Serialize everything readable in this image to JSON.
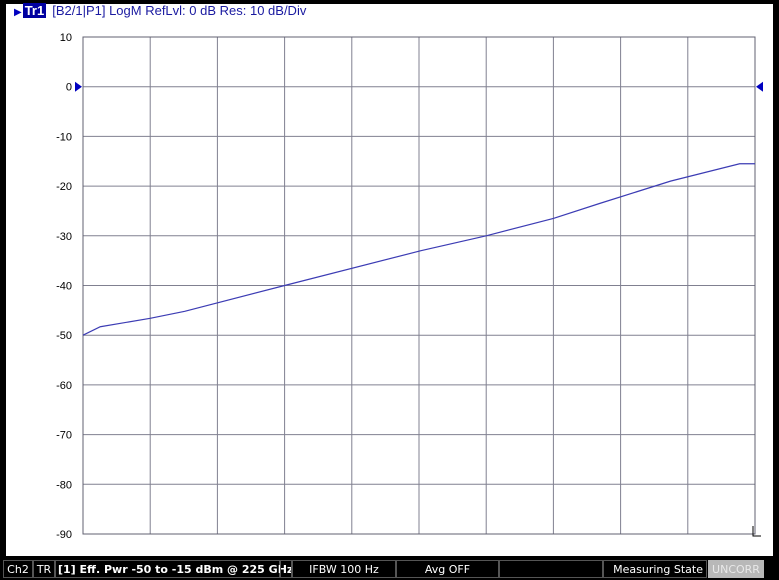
{
  "header": {
    "trace": "Tr1",
    "info": "[B2/1|P1]  LogM RefLvl: 0  dB Res: 10  dB/Div"
  },
  "status": {
    "channel": "Ch2",
    "tr": "TR",
    "sweep": "[1] Eff. Pwr  -50 to -15  dBm  @ 225 GHz",
    "ifbw": "IFBW 100  Hz",
    "avg": "Avg OFF",
    "blank": "",
    "state": "Measuring State",
    "cal": "UNCORR"
  },
  "chart_data": {
    "type": "line",
    "title": "",
    "xlabel": "",
    "ylabel": "",
    "ylim": [
      -90,
      10
    ],
    "yticks": [
      10,
      0,
      -10,
      -20,
      -30,
      -40,
      -50,
      -60,
      -70,
      -80,
      -90
    ],
    "xlim": [
      -50,
      -15
    ],
    "grid": true,
    "color": "#3c3cb4",
    "reference_level": 0,
    "series": [
      {
        "x": [
          -50,
          -49.1,
          -46.5,
          -44.7,
          -39.5,
          -32.4,
          -29.0,
          -25.5,
          -23.1,
          -19.4,
          -15.8,
          -15
        ],
        "y": [
          -50,
          -48.3,
          -46.6,
          -45.2,
          -40,
          -33,
          -30,
          -26.5,
          -23.5,
          -19,
          -15.5,
          -15.5
        ]
      }
    ]
  }
}
